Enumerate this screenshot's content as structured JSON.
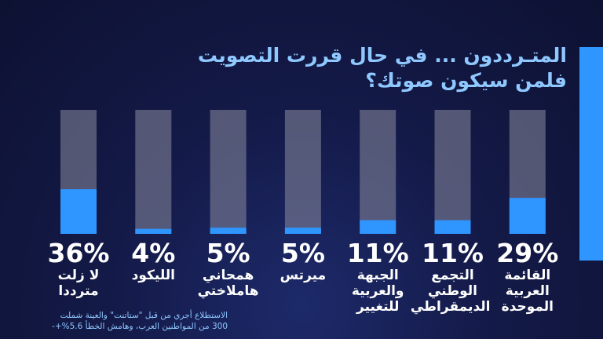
{
  "chart_data": {
    "type": "bar",
    "title": [
      "المتـرددون ... في حال قررت التصويت",
      "فلمن سيكون صوتك؟"
    ],
    "categories": [
      "لا زلت مترددا",
      "الليكود",
      "همحاني هاملاختي",
      "ميرتس",
      "الجبهة والعربية للتغيير",
      "التجمع الوطني الديمقراطي",
      "القائمة العربية الموحدة"
    ],
    "values": [
      36,
      4,
      5,
      5,
      11,
      11,
      29
    ],
    "value_labels": [
      "36%",
      "4%",
      "5%",
      "5%",
      "11%",
      "11%",
      "29%"
    ],
    "color": "#2f95ff",
    "ylim": [
      0,
      100
    ],
    "note": [
      "الاستطلاع أجري من قبل \"ستاتنت\" والعينة شملت",
      "300 من المواطنين العرب، وهامش الخطأ 5.6%+-"
    ]
  }
}
